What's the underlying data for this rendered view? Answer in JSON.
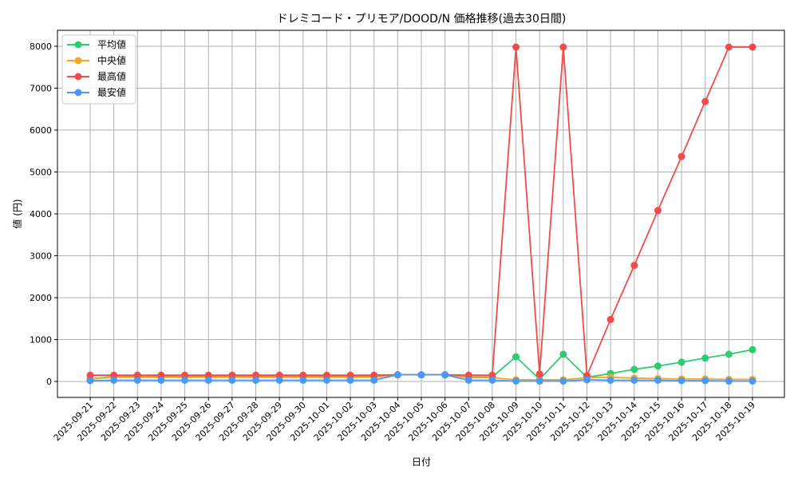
{
  "chart_data": {
    "type": "line",
    "title": "ドレミコード・プリモア/DOOD/N 価格推移(過去30日間)",
    "xlabel": "日付",
    "ylabel": "値 (円)",
    "ylim": [
      -380,
      8380
    ],
    "yticks": [
      0,
      1000,
      2000,
      3000,
      4000,
      5000,
      6000,
      7000,
      8000
    ],
    "grid": true,
    "legend_position": "upper left",
    "categories": [
      "2025-09-21",
      "2025-09-22",
      "2025-09-23",
      "2025-09-24",
      "2025-09-25",
      "2025-09-26",
      "2025-09-27",
      "2025-09-28",
      "2025-09-29",
      "2025-09-30",
      "2025-10-01",
      "2025-10-02",
      "2025-10-03",
      "2025-10-04",
      "2025-10-05",
      "2025-10-06",
      "2025-10-07",
      "2025-10-08",
      "2025-10-09",
      "2025-10-10",
      "2025-10-11",
      "2025-10-12",
      "2025-10-13",
      "2025-10-14",
      "2025-10-15",
      "2025-10-16",
      "2025-10-17",
      "2025-10-18",
      "2025-10-19"
    ],
    "series": [
      {
        "name": "平均値",
        "color": "#2ecc71",
        "values": [
          60,
          120,
          120,
          120,
          120,
          120,
          120,
          120,
          120,
          120,
          120,
          120,
          120,
          160,
          160,
          160,
          110,
          110,
          590,
          50,
          650,
          100,
          190,
          290,
          370,
          460,
          560,
          650,
          760
        ]
      },
      {
        "name": "中央値",
        "color": "#f5a623",
        "values": [
          60,
          100,
          100,
          100,
          100,
          100,
          100,
          100,
          100,
          100,
          100,
          100,
          100,
          160,
          160,
          160,
          90,
          90,
          40,
          40,
          40,
          90,
          100,
          80,
          70,
          60,
          60,
          50,
          50
        ]
      },
      {
        "name": "最高値",
        "color": "#f24b4b",
        "values": [
          150,
          150,
          150,
          150,
          150,
          150,
          150,
          150,
          150,
          150,
          150,
          150,
          150,
          160,
          160,
          160,
          150,
          150,
          7980,
          180,
          7980,
          140,
          1480,
          2770,
          4080,
          5370,
          6680,
          7980,
          7980
        ]
      },
      {
        "name": "最安値",
        "color": "#4a9af5",
        "values": [
          20,
          30,
          30,
          30,
          30,
          30,
          30,
          30,
          30,
          30,
          30,
          30,
          30,
          160,
          160,
          160,
          30,
          30,
          10,
          10,
          10,
          40,
          30,
          30,
          30,
          20,
          20,
          10,
          10
        ]
      }
    ]
  },
  "legend": {
    "items": [
      {
        "label": "平均値"
      },
      {
        "label": "中央値"
      },
      {
        "label": "最高値"
      },
      {
        "label": "最安値"
      }
    ]
  }
}
